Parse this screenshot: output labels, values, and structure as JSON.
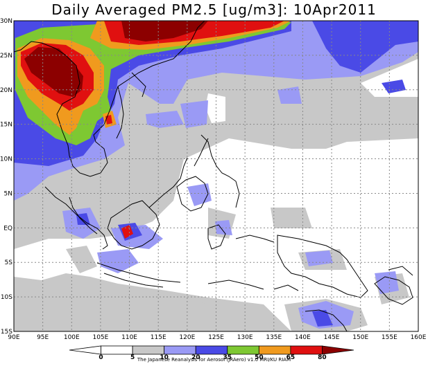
{
  "title": "Daily Averaged PM2.5 [ug/m3]: 10Apr2011",
  "credit": "The Japanese Reanalysis for Aerosol (JRAero) v1.0 MRI/KU RIAM",
  "axes": {
    "lat_labels": [
      "30N",
      "25N",
      "20N",
      "15N",
      "10N",
      "5N",
      "EQ",
      "5S",
      "10S",
      "15S"
    ],
    "lon_labels": [
      "90E",
      "95E",
      "100E",
      "105E",
      "110E",
      "115E",
      "120E",
      "125E",
      "130E",
      "135E",
      "140E",
      "145E",
      "150E",
      "155E",
      "160E"
    ]
  },
  "colorbar": {
    "levels": [
      "0",
      "5",
      "10",
      "20",
      "35",
      "50",
      "65",
      "80"
    ],
    "colors": [
      "#ffffff",
      "#ffffff",
      "#c8c8c8",
      "#9a9af5",
      "#4a4ae6",
      "#7ec832",
      "#f09a1e",
      "#e01010",
      "#8c0000"
    ]
  }
}
